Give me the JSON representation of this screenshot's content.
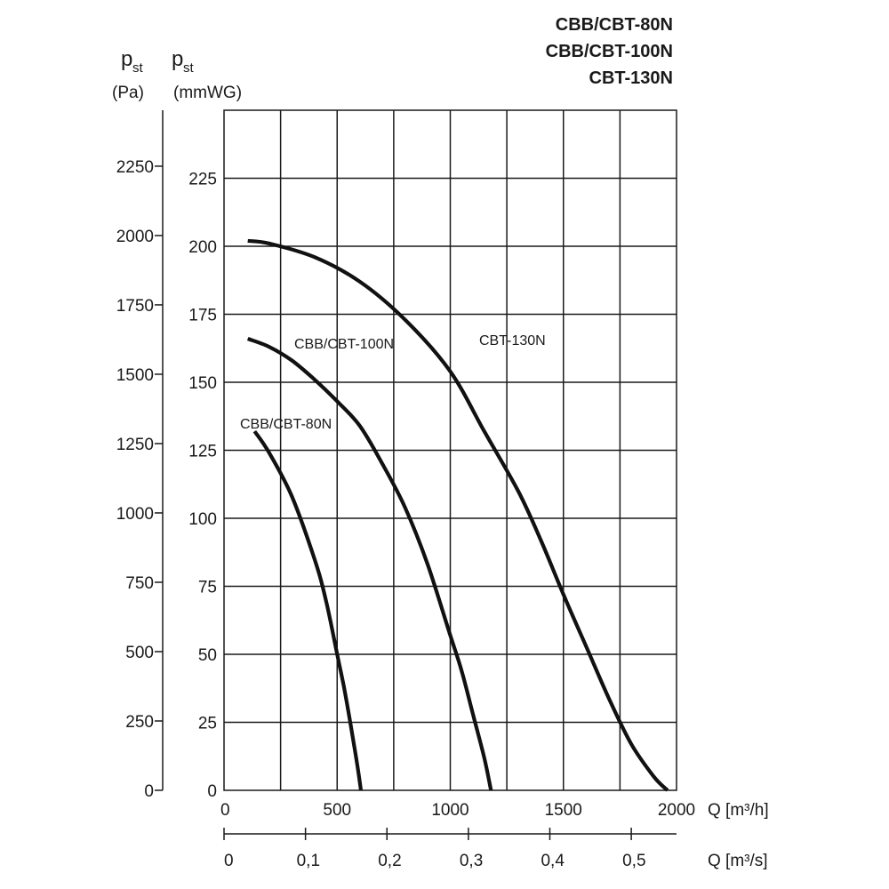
{
  "title_lines": [
    "CBB/CBT-80N",
    "CBB/CBT-100N",
    "CBT-130N"
  ],
  "y_left": {
    "symbol": "p",
    "subscript": "st",
    "unit": "(Pa)",
    "ticks": [
      "0",
      "250",
      "500",
      "750",
      "1000",
      "1250",
      "1500",
      "1750",
      "2000",
      "2250"
    ]
  },
  "y_right": {
    "symbol": "p",
    "subscript": "st",
    "unit": "(mmWG)",
    "ticks": [
      "0",
      "25",
      "50",
      "75",
      "100",
      "125",
      "150",
      "175",
      "200",
      "225"
    ]
  },
  "x_top": {
    "label": "Q [m³/h]",
    "ticks": [
      "0",
      "500",
      "1000",
      "1500",
      "2000"
    ]
  },
  "x_bottom": {
    "label": "Q [m³/s]",
    "ticks": [
      "0",
      "0,1",
      "0,2",
      "0,3",
      "0,4",
      "0,5"
    ]
  },
  "chart_data": {
    "type": "line",
    "title": "CBB/CBT-80N\nCBB/CBT-100N\nCBT-130N",
    "xlabel": "Q [m³/h]",
    "xlabel_secondary": "Q [m³/s]",
    "ylabel": "p st (mmWG)",
    "ylabel_secondary": "p st (Pa)",
    "xlim": [
      0,
      2000
    ],
    "ylim": [
      0,
      250
    ],
    "grid": true,
    "series": [
      {
        "name": "CBB/CBT-80N",
        "x": [
          135,
          200,
          300,
          400,
          450,
          500,
          530,
          560,
          580,
          595,
          605
        ],
        "y": [
          132,
          124,
          108,
          85,
          70,
          50,
          38,
          24,
          14,
          6,
          0
        ]
      },
      {
        "name": "CBB/CBT-100N",
        "x": [
          105,
          200,
          300,
          400,
          500,
          600,
          700,
          800,
          900,
          1000,
          1050,
          1100,
          1150,
          1180
        ],
        "y": [
          166,
          163,
          158,
          151,
          143,
          134,
          120,
          104,
          83,
          57,
          44,
          28,
          12,
          0
        ]
      },
      {
        "name": "CBT-130N",
        "x": [
          105,
          200,
          400,
          600,
          800,
          1000,
          1150,
          1300,
          1400,
          1500,
          1600,
          1700,
          1800,
          1900,
          1960
        ],
        "y": [
          202,
          201,
          196,
          187,
          173,
          154,
          132,
          110,
          92,
          72,
          53,
          34,
          17,
          5,
          0
        ]
      }
    ],
    "secondary_x_ticks": [
      "0",
      "0,1",
      "0,2",
      "0,3",
      "0,4",
      "0,5"
    ],
    "secondary_y_ticks": [
      "0",
      "250",
      "500",
      "750",
      "1000",
      "1250",
      "1500",
      "1750",
      "2000",
      "2250"
    ]
  }
}
